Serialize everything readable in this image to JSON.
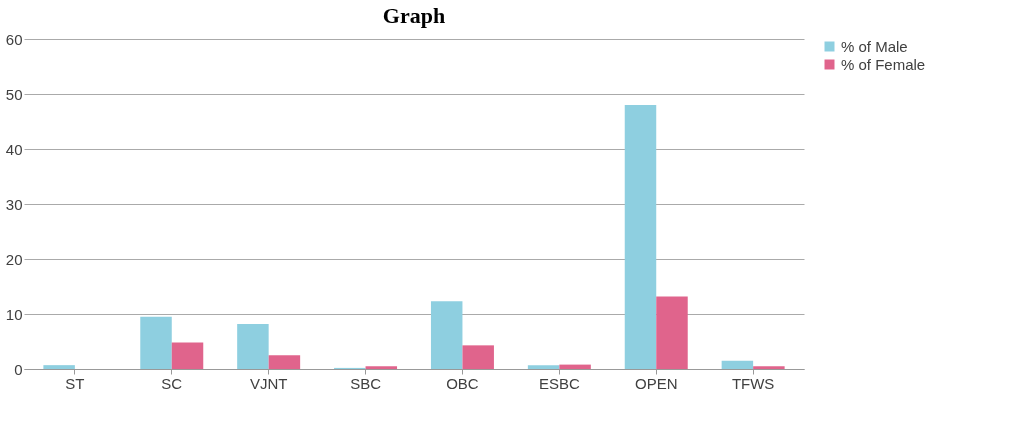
{
  "chart_data": {
    "type": "bar",
    "title": "Graph",
    "categories": [
      "ST",
      "SC",
      "VJNT",
      "SBC",
      "OBC",
      "ESBC",
      "OPEN",
      "TFWS"
    ],
    "series": [
      {
        "name": "% of Male",
        "color": "#8ecfe0",
        "values": [
          0.7,
          9.5,
          8.2,
          0.2,
          12.3,
          0.7,
          48,
          1.5
        ]
      },
      {
        "name": "% of Female",
        "color": "#e0648c",
        "values": [
          0,
          4.8,
          2.5,
          0.5,
          4.3,
          0.8,
          13.2,
          0.5
        ]
      }
    ],
    "ylim": [
      0,
      60
    ],
    "yticks": [
      0,
      10,
      20,
      30,
      40,
      50,
      60
    ],
    "grid": "y",
    "legend": "right"
  }
}
